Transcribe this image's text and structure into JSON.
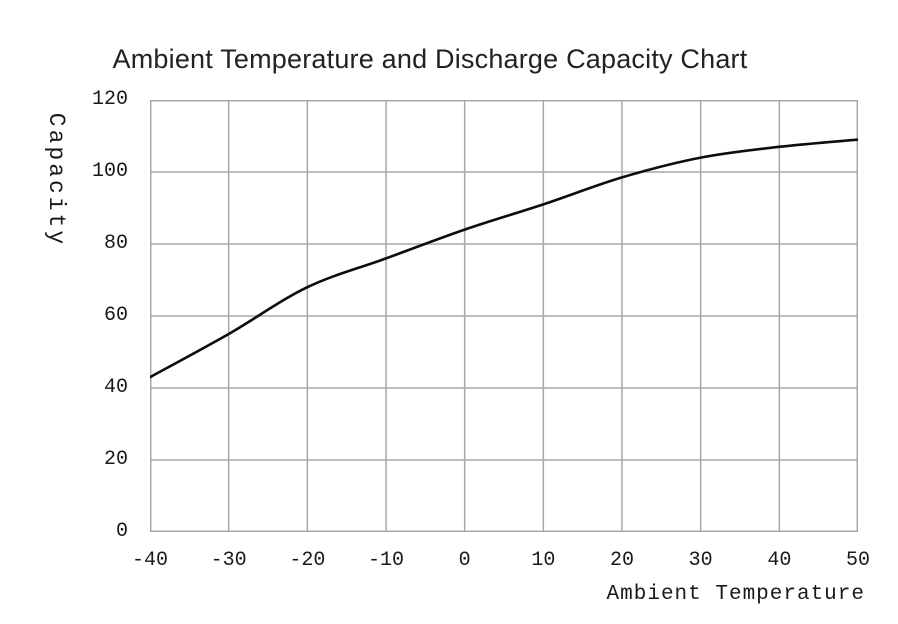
{
  "chart": {
    "title": "Ambient Temperature and Discharge Capacity Chart",
    "x_axis_label": "Ambient Temperature",
    "y_axis_label": "Capacity",
    "colors": {
      "line": "#0d0d0d",
      "grid": "#a8a8a8",
      "text": "#1a1a1a",
      "background": "#ffffff"
    }
  },
  "chart_data": {
    "type": "line",
    "title": "Ambient Temperature and Discharge Capacity Chart",
    "xlabel": "Ambient Temperature",
    "ylabel": "Capacity",
    "x": [
      -40,
      -30,
      -20,
      -10,
      0,
      10,
      20,
      30,
      40,
      50
    ],
    "series": [
      {
        "name": "Discharge Capacity",
        "values": [
          43,
          55,
          68,
          76,
          84,
          91,
          98.5,
          104,
          107,
          109
        ]
      }
    ],
    "x_ticks": [
      -40,
      -30,
      -20,
      -10,
      0,
      10,
      20,
      30,
      40,
      50
    ],
    "y_ticks": [
      0,
      20,
      40,
      60,
      80,
      100,
      120
    ],
    "xlim": [
      -40,
      50
    ],
    "ylim": [
      0,
      120
    ],
    "grid": true,
    "legend": false
  }
}
